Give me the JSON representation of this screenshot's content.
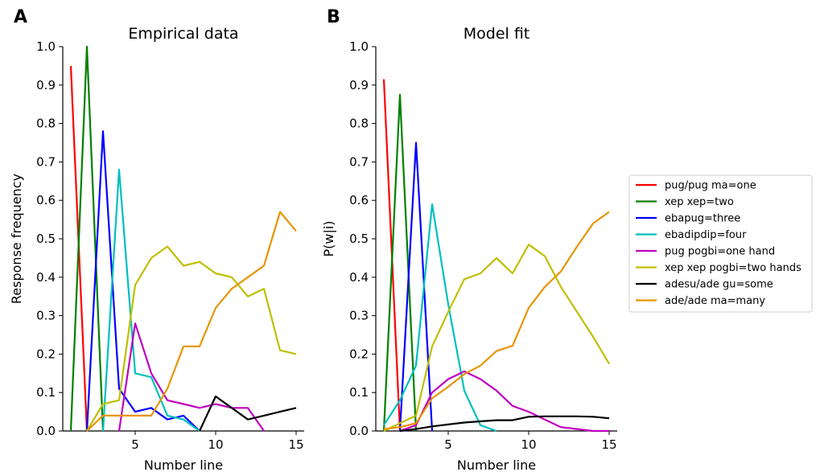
{
  "legend": [
    {
      "label": "pug/pug ma=one",
      "color": "#ff0000"
    },
    {
      "label": "xep xep=two",
      "color": "#008000"
    },
    {
      "label": "ebapug=three",
      "color": "#0000ff"
    },
    {
      "label": "ebadipdip=four",
      "color": "#00bfbf"
    },
    {
      "label": "pug pogbi=one hand",
      "color": "#bf00bf"
    },
    {
      "label": "xep xep pogbi=two hands",
      "color": "#bfbf00"
    },
    {
      "label": "adesu/ade gu=some",
      "color": "#000000"
    },
    {
      "label": "ade/ade ma=many",
      "color": "#e69500"
    }
  ],
  "chart_data": [
    {
      "type": "line",
      "panel": "A",
      "title": "Empirical data",
      "xlabel": "Number line",
      "ylabel": "Response frequency",
      "xlim": [
        0.5,
        15.5
      ],
      "ylim": [
        0,
        1.0
      ],
      "xticks": [
        5,
        10,
        15
      ],
      "yticks": [
        "0.0",
        "0.1",
        "0.2",
        "0.3",
        "0.4",
        "0.5",
        "0.6",
        "0.7",
        "0.8",
        "0.9",
        "1.0"
      ],
      "x": [
        1,
        2,
        3,
        4,
        5,
        6,
        7,
        8,
        9,
        10,
        11,
        12,
        13,
        14,
        15
      ],
      "series": [
        {
          "name": "pug/pug ma=one",
          "color": "#ff0000",
          "values": [
            0.95,
            0.0,
            null,
            null,
            null,
            null,
            null,
            null,
            null,
            null,
            null,
            null,
            null,
            null,
            null
          ]
        },
        {
          "name": "xep xep=two",
          "color": "#008000",
          "values": [
            0.0,
            1.0,
            0.0,
            null,
            null,
            null,
            null,
            null,
            null,
            null,
            null,
            null,
            null,
            null,
            null
          ]
        },
        {
          "name": "ebapug=three",
          "color": "#0000ff",
          "values": [
            null,
            0.0,
            0.78,
            0.11,
            0.05,
            0.06,
            0.03,
            0.04,
            0.0,
            null,
            null,
            null,
            null,
            null,
            null
          ]
        },
        {
          "name": "ebadipdip=four",
          "color": "#00bfbf",
          "values": [
            null,
            null,
            0.0,
            0.68,
            0.15,
            0.14,
            0.04,
            0.03,
            0.0,
            null,
            null,
            null,
            null,
            null,
            null
          ]
        },
        {
          "name": "pug pogbi=one hand",
          "color": "#bf00bf",
          "values": [
            null,
            null,
            null,
            0.0,
            0.28,
            0.15,
            0.08,
            0.07,
            0.06,
            0.07,
            0.06,
            0.06,
            0.0,
            null,
            null
          ]
        },
        {
          "name": "xep xep pogbi=two hands",
          "color": "#bfbf00",
          "values": [
            null,
            0.0,
            0.07,
            0.08,
            0.38,
            0.45,
            0.48,
            0.43,
            0.44,
            0.41,
            0.4,
            0.35,
            0.37,
            0.21,
            0.2
          ]
        },
        {
          "name": "adesu/ade gu=some",
          "color": "#000000",
          "values": [
            null,
            null,
            null,
            null,
            null,
            null,
            null,
            null,
            0.0,
            0.09,
            0.06,
            0.03,
            0.04,
            0.05,
            0.06
          ]
        },
        {
          "name": "ade/ade ma=many",
          "color": "#e69500",
          "values": [
            null,
            0.0,
            0.04,
            0.04,
            0.04,
            0.04,
            0.11,
            0.22,
            0.22,
            0.32,
            0.37,
            0.4,
            0.43,
            0.57,
            0.52
          ]
        }
      ]
    },
    {
      "type": "line",
      "panel": "B",
      "title": "Model fit",
      "xlabel": "Number line",
      "ylabel": "P(w|i)",
      "xlim": [
        0.5,
        15.5
      ],
      "ylim": [
        0,
        1.0
      ],
      "xticks": [
        5,
        10,
        15
      ],
      "yticks": [
        "0.0",
        "0.1",
        "0.2",
        "0.3",
        "0.4",
        "0.5",
        "0.6",
        "0.7",
        "0.8",
        "0.9",
        "1.0"
      ],
      "x": [
        1,
        2,
        3,
        4,
        5,
        6,
        7,
        8,
        9,
        10,
        11,
        12,
        13,
        14,
        15
      ],
      "series": [
        {
          "name": "pug/pug ma=one",
          "color": "#ff0000",
          "values": [
            0.915,
            0.0,
            null,
            null,
            null,
            null,
            null,
            null,
            null,
            null,
            null,
            null,
            null,
            null,
            null
          ]
        },
        {
          "name": "xep xep=two",
          "color": "#008000",
          "values": [
            0.0,
            0.875,
            0.0,
            null,
            null,
            null,
            null,
            null,
            null,
            null,
            null,
            null,
            null,
            null,
            null
          ]
        },
        {
          "name": "ebapug=three",
          "color": "#0000ff",
          "values": [
            null,
            0.0,
            0.75,
            0.0,
            null,
            null,
            null,
            null,
            null,
            null,
            null,
            null,
            null,
            null,
            null
          ]
        },
        {
          "name": "ebadipdip=four",
          "color": "#00bfbf",
          "values": [
            0.015,
            0.08,
            0.17,
            0.59,
            0.33,
            0.105,
            0.015,
            0.0,
            null,
            null,
            null,
            null,
            null,
            null,
            null
          ]
        },
        {
          "name": "pug pogbi=one hand",
          "color": "#bf00bf",
          "values": [
            null,
            0.0,
            0.015,
            0.1,
            0.135,
            0.155,
            0.135,
            0.105,
            0.065,
            0.05,
            0.03,
            0.01,
            0.005,
            0.0,
            0.0
          ]
        },
        {
          "name": "xep xep pogbi=two hands",
          "color": "#bfbf00",
          "values": [
            0.0,
            0.02,
            0.04,
            0.22,
            0.31,
            0.395,
            0.41,
            0.45,
            0.41,
            0.485,
            0.455,
            0.375,
            0.31,
            0.245,
            0.175
          ]
        },
        {
          "name": "adesu/ade gu=some",
          "color": "#000000",
          "values": [
            null,
            0.0,
            0.005,
            0.012,
            0.017,
            0.022,
            0.025,
            0.028,
            0.028,
            0.037,
            0.038,
            0.038,
            0.038,
            0.037,
            0.033
          ]
        },
        {
          "name": "ade/ade ma=many",
          "color": "#e69500",
          "values": [
            0.005,
            0.01,
            0.02,
            0.085,
            0.115,
            0.148,
            0.17,
            0.208,
            0.222,
            0.32,
            0.375,
            0.415,
            0.48,
            0.54,
            0.57
          ]
        }
      ]
    }
  ]
}
